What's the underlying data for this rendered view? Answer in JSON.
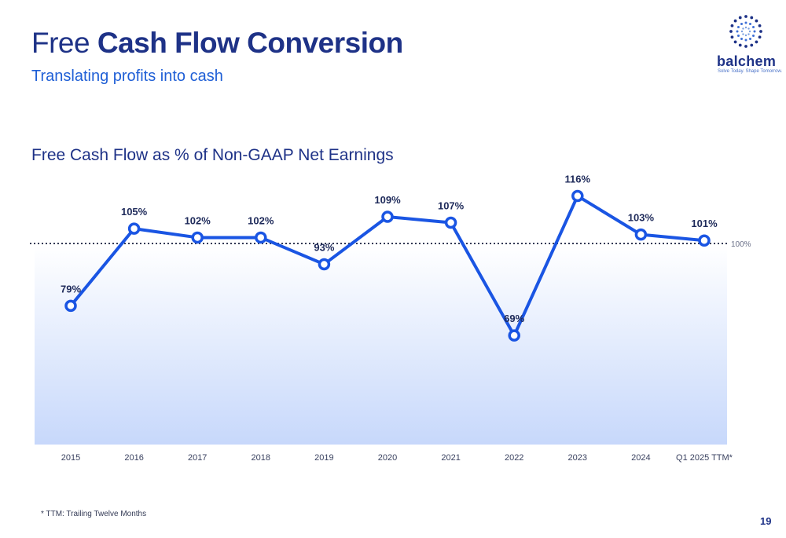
{
  "header": {
    "title_regular": "Free",
    "title_bold": "Cash Flow Conversion",
    "subtitle": "Translating profits into cash"
  },
  "logo": {
    "name": "balchem",
    "tagline": "Solve Today. Shape Tomorrow."
  },
  "chart_data": {
    "type": "line",
    "title": "Free Cash Flow as % of Non-GAAP Net Earnings",
    "xlabel": "",
    "ylabel": "",
    "categories": [
      "2015",
      "2016",
      "2017",
      "2018",
      "2019",
      "2020",
      "2021",
      "2022",
      "2023",
      "2024",
      "Q1 2025 TTM*"
    ],
    "series": [
      {
        "values": [
          79,
          105,
          102,
          102,
          93,
          109,
          107,
          69,
          116,
          103,
          101
        ],
        "labels": [
          "79%",
          "105%",
          "102%",
          "102%",
          "93%",
          "109%",
          "107%",
          "69%",
          "116%",
          "103%",
          "101%"
        ]
      }
    ],
    "reference_line": {
      "value": 100,
      "label": "100%"
    },
    "ylim": [
      0,
      120
    ],
    "grid": false,
    "legend": "none",
    "colors": {
      "line": "#1a55e3",
      "reference": "#333a55",
      "area_top": "#ffffff",
      "area_bottom": "#c7d8fb"
    }
  },
  "footer": {
    "footnote": "* TTM: Trailing Twelve Months",
    "page_number": "19"
  }
}
